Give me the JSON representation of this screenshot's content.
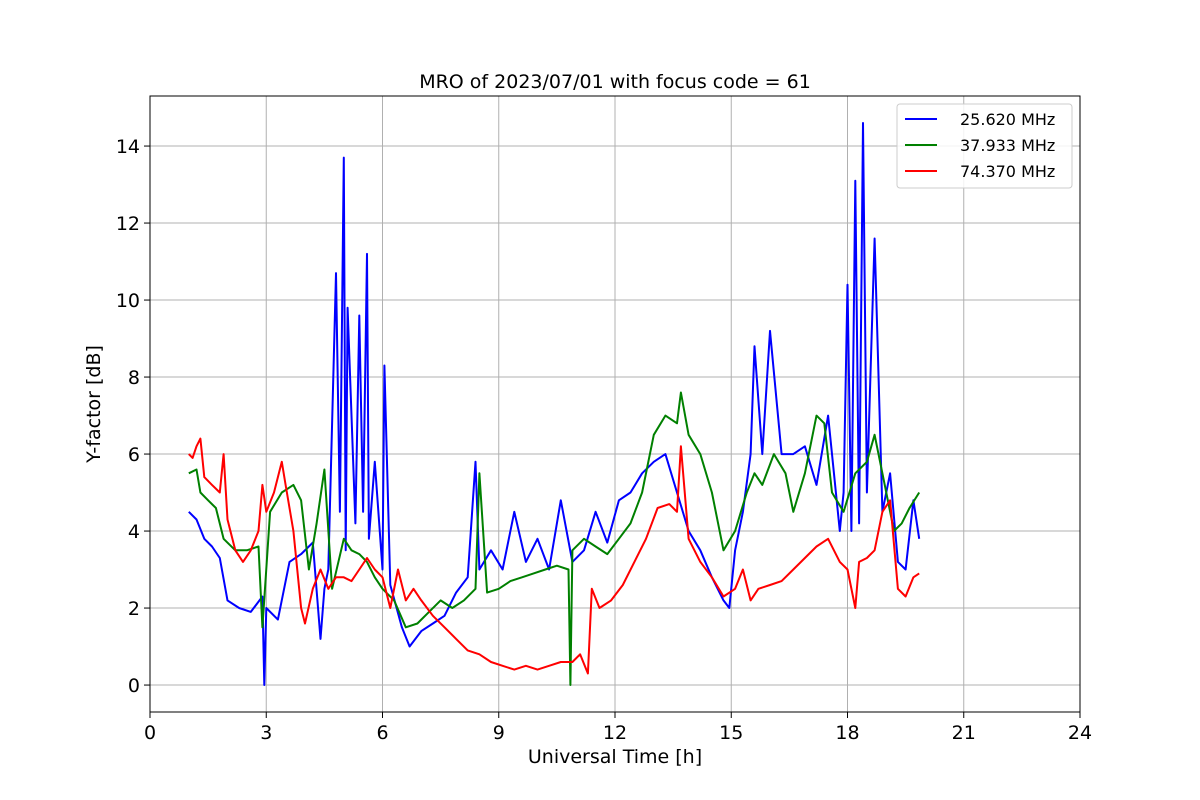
{
  "chart_data": {
    "type": "line",
    "title": "MRO of 2023/07/01 with focus code = 61",
    "xlabel": "Universal Time [h]",
    "ylabel": "Y-factor [dB]",
    "xlim": [
      0,
      24
    ],
    "ylim": [
      -0.7,
      15.3
    ],
    "xticks": [
      0,
      3,
      6,
      9,
      12,
      15,
      18,
      21,
      24
    ],
    "yticks": [
      0,
      2,
      4,
      6,
      8,
      10,
      12,
      14
    ],
    "grid": true,
    "legend_position": "top-right",
    "series": [
      {
        "name": "25.620 MHz",
        "color": "#0000ff",
        "x": [
          1.0,
          1.2,
          1.4,
          1.6,
          1.8,
          2.0,
          2.3,
          2.6,
          2.9,
          2.95,
          3.0,
          3.3,
          3.6,
          3.9,
          4.2,
          4.4,
          4.5,
          4.6,
          4.8,
          4.9,
          5.0,
          5.05,
          5.1,
          5.3,
          5.4,
          5.5,
          5.6,
          5.65,
          5.8,
          6.0,
          6.05,
          6.2,
          6.5,
          6.7,
          7.0,
          7.3,
          7.6,
          7.9,
          8.2,
          8.4,
          8.5,
          8.8,
          9.1,
          9.4,
          9.7,
          10.0,
          10.3,
          10.6,
          10.9,
          11.2,
          11.5,
          11.8,
          12.1,
          12.4,
          12.7,
          13.0,
          13.3,
          13.6,
          13.9,
          14.2,
          14.5,
          14.8,
          14.95,
          15.1,
          15.3,
          15.5,
          15.6,
          15.8,
          16.0,
          16.3,
          16.6,
          16.9,
          17.2,
          17.5,
          17.8,
          17.9,
          18.0,
          18.1,
          18.2,
          18.3,
          18.4,
          18.5,
          18.7,
          18.9,
          19.1,
          19.3,
          19.5,
          19.7,
          19.85
        ],
        "y": [
          4.5,
          4.3,
          3.8,
          3.6,
          3.3,
          2.2,
          2.0,
          1.9,
          2.3,
          0.0,
          2.0,
          1.7,
          3.2,
          3.4,
          3.7,
          1.2,
          2.5,
          3.0,
          10.7,
          4.5,
          13.7,
          3.5,
          9.8,
          4.2,
          9.6,
          4.5,
          11.2,
          3.8,
          5.8,
          3.0,
          8.3,
          2.6,
          1.5,
          1.0,
          1.4,
          1.6,
          1.8,
          2.4,
          2.8,
          5.8,
          3.0,
          3.5,
          3.0,
          4.5,
          3.2,
          3.8,
          3.0,
          4.8,
          3.2,
          3.5,
          4.5,
          3.7,
          4.8,
          5.0,
          5.5,
          5.8,
          6.0,
          5.0,
          4.0,
          3.5,
          2.8,
          2.2,
          2.0,
          3.5,
          4.5,
          6.0,
          8.8,
          6.0,
          9.2,
          6.0,
          6.0,
          6.2,
          5.2,
          7.0,
          4.0,
          5.0,
          10.4,
          4.0,
          13.1,
          4.2,
          14.6,
          5.0,
          11.6,
          4.5,
          5.5,
          3.2,
          3.0,
          4.8,
          3.8
        ]
      },
      {
        "name": "37.933 MHz",
        "color": "#008000",
        "x": [
          1.0,
          1.2,
          1.3,
          1.5,
          1.7,
          1.9,
          2.2,
          2.5,
          2.8,
          2.9,
          3.1,
          3.4,
          3.7,
          3.9,
          4.1,
          4.3,
          4.5,
          4.7,
          5.0,
          5.2,
          5.4,
          5.6,
          5.8,
          6.0,
          6.3,
          6.6,
          6.9,
          7.2,
          7.5,
          7.8,
          8.1,
          8.4,
          8.5,
          8.7,
          9.0,
          9.3,
          9.6,
          9.9,
          10.2,
          10.5,
          10.8,
          10.85,
          10.9,
          11.2,
          11.5,
          11.8,
          12.1,
          12.4,
          12.7,
          13.0,
          13.3,
          13.6,
          13.7,
          13.9,
          14.2,
          14.5,
          14.8,
          15.1,
          15.4,
          15.6,
          15.8,
          16.1,
          16.4,
          16.6,
          16.9,
          17.2,
          17.4,
          17.6,
          17.9,
          18.2,
          18.5,
          18.7,
          18.9,
          19.2,
          19.4,
          19.6,
          19.85
        ],
        "y": [
          5.5,
          5.6,
          5.0,
          4.8,
          4.6,
          3.8,
          3.5,
          3.5,
          3.6,
          1.5,
          4.5,
          5.0,
          5.2,
          4.8,
          3.0,
          4.2,
          5.6,
          2.5,
          3.8,
          3.5,
          3.4,
          3.2,
          2.8,
          2.5,
          2.2,
          1.5,
          1.6,
          1.9,
          2.2,
          2.0,
          2.2,
          2.5,
          5.5,
          2.4,
          2.5,
          2.7,
          2.8,
          2.9,
          3.0,
          3.1,
          3.0,
          0.0,
          3.5,
          3.8,
          3.6,
          3.4,
          3.8,
          4.2,
          5.0,
          6.5,
          7.0,
          6.8,
          7.6,
          6.5,
          6.0,
          5.0,
          3.5,
          4.0,
          5.0,
          5.5,
          5.2,
          6.0,
          5.5,
          4.5,
          5.5,
          7.0,
          6.8,
          5.0,
          4.5,
          5.5,
          5.8,
          6.5,
          5.5,
          4.0,
          4.2,
          4.6,
          5.0
        ]
      },
      {
        "name": "74.370 MHz",
        "color": "#ff0000",
        "x": [
          1.0,
          1.1,
          1.2,
          1.3,
          1.4,
          1.6,
          1.8,
          1.9,
          2.0,
          2.2,
          2.4,
          2.6,
          2.8,
          2.9,
          3.0,
          3.2,
          3.4,
          3.5,
          3.7,
          3.9,
          4.0,
          4.2,
          4.4,
          4.6,
          4.8,
          5.0,
          5.2,
          5.4,
          5.6,
          5.8,
          6.0,
          6.2,
          6.4,
          6.6,
          6.8,
          7.0,
          7.3,
          7.6,
          7.9,
          8.2,
          8.5,
          8.8,
          9.1,
          9.4,
          9.7,
          10.0,
          10.3,
          10.6,
          10.9,
          11.1,
          11.3,
          11.4,
          11.6,
          11.9,
          12.2,
          12.5,
          12.8,
          13.1,
          13.4,
          13.6,
          13.7,
          13.9,
          14.2,
          14.5,
          14.8,
          15.1,
          15.3,
          15.5,
          15.7,
          16.0,
          16.3,
          16.6,
          16.9,
          17.2,
          17.5,
          17.8,
          18.0,
          18.2,
          18.3,
          18.5,
          18.7,
          18.9,
          19.1,
          19.3,
          19.5,
          19.7,
          19.85
        ],
        "y": [
          6.0,
          5.9,
          6.2,
          6.4,
          5.4,
          5.2,
          5.0,
          6.0,
          4.3,
          3.5,
          3.2,
          3.5,
          4.0,
          5.2,
          4.5,
          5.0,
          5.8,
          5.2,
          4.0,
          2.0,
          1.6,
          2.5,
          3.0,
          2.5,
          2.8,
          2.8,
          2.7,
          3.0,
          3.3,
          3.0,
          2.8,
          2.0,
          3.0,
          2.2,
          2.5,
          2.2,
          1.8,
          1.5,
          1.2,
          0.9,
          0.8,
          0.6,
          0.5,
          0.4,
          0.5,
          0.4,
          0.5,
          0.6,
          0.6,
          0.8,
          0.3,
          2.5,
          2.0,
          2.2,
          2.6,
          3.2,
          3.8,
          4.6,
          4.7,
          4.5,
          6.2,
          3.8,
          3.2,
          2.8,
          2.3,
          2.5,
          3.0,
          2.2,
          2.5,
          2.6,
          2.7,
          3.0,
          3.3,
          3.6,
          3.8,
          3.2,
          3.0,
          2.0,
          3.2,
          3.3,
          3.5,
          4.5,
          4.8,
          2.5,
          2.3,
          2.8,
          2.9
        ]
      }
    ]
  }
}
